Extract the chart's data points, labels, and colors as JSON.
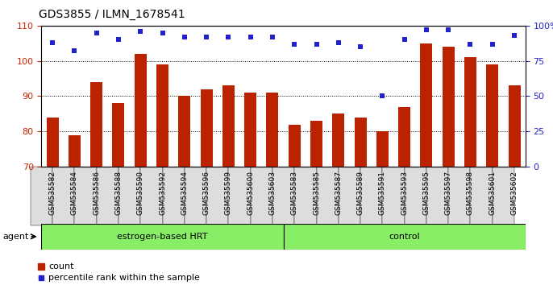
{
  "title": "GDS3855 / ILMN_1678541",
  "samples": [
    "GSM535582",
    "GSM535584",
    "GSM535586",
    "GSM535588",
    "GSM535590",
    "GSM535592",
    "GSM535594",
    "GSM535596",
    "GSM535599",
    "GSM535600",
    "GSM535603",
    "GSM535583",
    "GSM535585",
    "GSM535587",
    "GSM535589",
    "GSM535591",
    "GSM535593",
    "GSM535595",
    "GSM535597",
    "GSM535598",
    "GSM535601",
    "GSM535602"
  ],
  "counts": [
    84,
    79,
    94,
    88,
    102,
    99,
    90,
    92,
    93,
    91,
    91,
    82,
    83,
    85,
    84,
    80,
    87,
    105,
    104,
    101,
    99,
    93
  ],
  "percentiles": [
    88,
    82,
    95,
    90,
    96,
    95,
    92,
    92,
    92,
    92,
    92,
    87,
    87,
    88,
    85,
    50,
    90,
    97,
    97,
    87,
    87,
    93
  ],
  "group1_label": "estrogen-based HRT",
  "group1_count": 11,
  "group2_label": "control",
  "group2_count": 11,
  "agent_label": "agent",
  "ylim_left": [
    70,
    110
  ],
  "ylim_right": [
    0,
    100
  ],
  "yticks_left": [
    70,
    80,
    90,
    100,
    110
  ],
  "yticks_right": [
    0,
    25,
    50,
    75,
    100
  ],
  "bar_color": "#bb2200",
  "dot_color": "#2222cc",
  "bg_color": "#ffffff",
  "plot_bg": "#ffffff",
  "group_bg": "#88ee66",
  "tick_color_left": "#cc2200",
  "tick_color_right": "#2222cc",
  "grid_color": "#000000",
  "title_fontsize": 10,
  "tick_fontsize": 8,
  "legend_fontsize": 8,
  "xtick_bg": "#dddddd"
}
